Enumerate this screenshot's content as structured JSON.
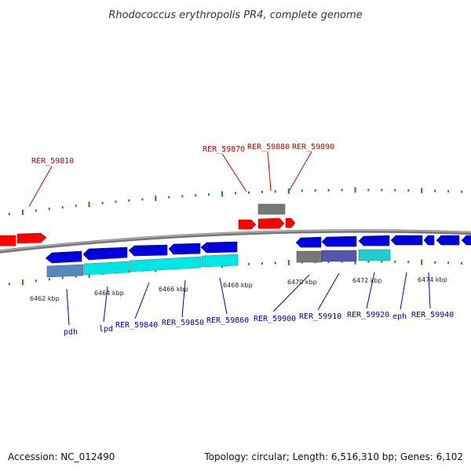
{
  "title": "Rhodococcus erythropolis PR4, complete genome",
  "footer": {
    "accession": "Accession: NC_012490",
    "summary": "Topology: circular; Length: 6,516,310 bp; Genes: 6,102"
  },
  "colors": {
    "forward_gene": "#ff0000",
    "reverse_gene": "#0000dd",
    "forward_label": "#cc0000",
    "reverse_label": "#0000bb",
    "backbone": "#888888",
    "tick": "#228822",
    "cyan_feature": "#00e5e5",
    "steel_feature": "#5588bb",
    "gray_feature": "#777777",
    "purple_feature": "#5555aa"
  },
  "scale_labels": [
    "6462 kbp",
    "6464 kbp",
    "6466 kbp",
    "6468 kbp",
    "6470 kbp",
    "6472 kbp",
    "6474 kbp"
  ],
  "forward_labels": [
    "RER_59810",
    "RER_59870",
    "RER_59880",
    "RER_59890"
  ],
  "reverse_labels": [
    "pdh",
    "lpd",
    "RER_59840",
    "RER_59850",
    "RER_59860",
    "RER_59900",
    "RER_59910",
    "RER_59920",
    "eph",
    "RER_59940"
  ]
}
